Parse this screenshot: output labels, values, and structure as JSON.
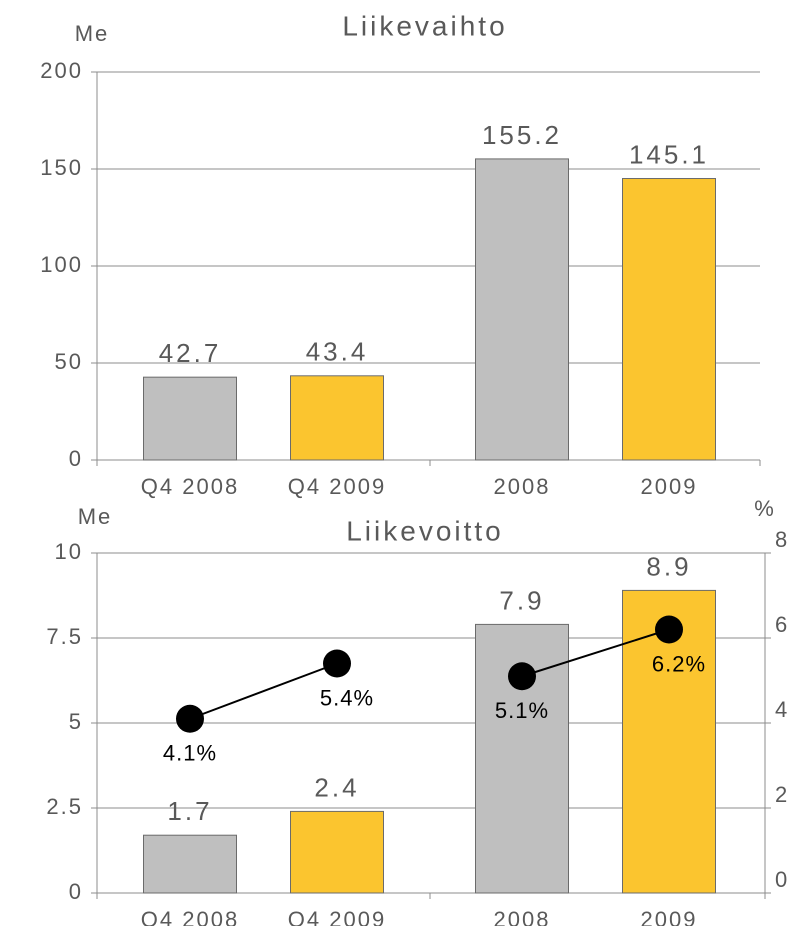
{
  "chart_data": [
    {
      "type": "bar",
      "title": "Liikevaihto",
      "y_label": "Me",
      "categories": [
        "Q4 2008",
        "Q4 2009",
        "2008",
        "2009"
      ],
      "series": [
        {
          "type": "bar",
          "values": [
            42.7,
            43.4,
            155.2,
            145.1
          ],
          "colors": [
            "#bfbfbf",
            "#fbc52f",
            "#bfbfbf",
            "#fbc52f"
          ]
        }
      ],
      "ylim": [
        0,
        200
      ],
      "yticks": [
        0,
        50,
        100,
        150,
        200
      ],
      "grid": true
    },
    {
      "type": "bar",
      "title": "Liikevoitto",
      "y_label": "Me",
      "y2_label": "%",
      "categories": [
        "Q4 2008",
        "Q4 2009",
        "2008",
        "2009"
      ],
      "series": [
        {
          "type": "bar",
          "values": [
            1.7,
            2.4,
            7.9,
            8.9
          ],
          "colors": [
            "#bfbfbf",
            "#fbc52f",
            "#bfbfbf",
            "#fbc52f"
          ]
        },
        {
          "type": "line",
          "axis": "y2",
          "color": "#000000",
          "values": [
            4.1,
            5.4,
            5.1,
            6.2
          ],
          "value_labels": [
            "4.1%",
            "5.4%",
            "5.1%",
            "6.2%"
          ]
        }
      ],
      "ylim": [
        0,
        10
      ],
      "yticks": [
        0,
        2.5,
        5,
        7.5,
        10
      ],
      "y2lim": [
        0,
        8
      ],
      "y2ticks": [
        0,
        2,
        4,
        6,
        8
      ],
      "grid": true
    }
  ]
}
